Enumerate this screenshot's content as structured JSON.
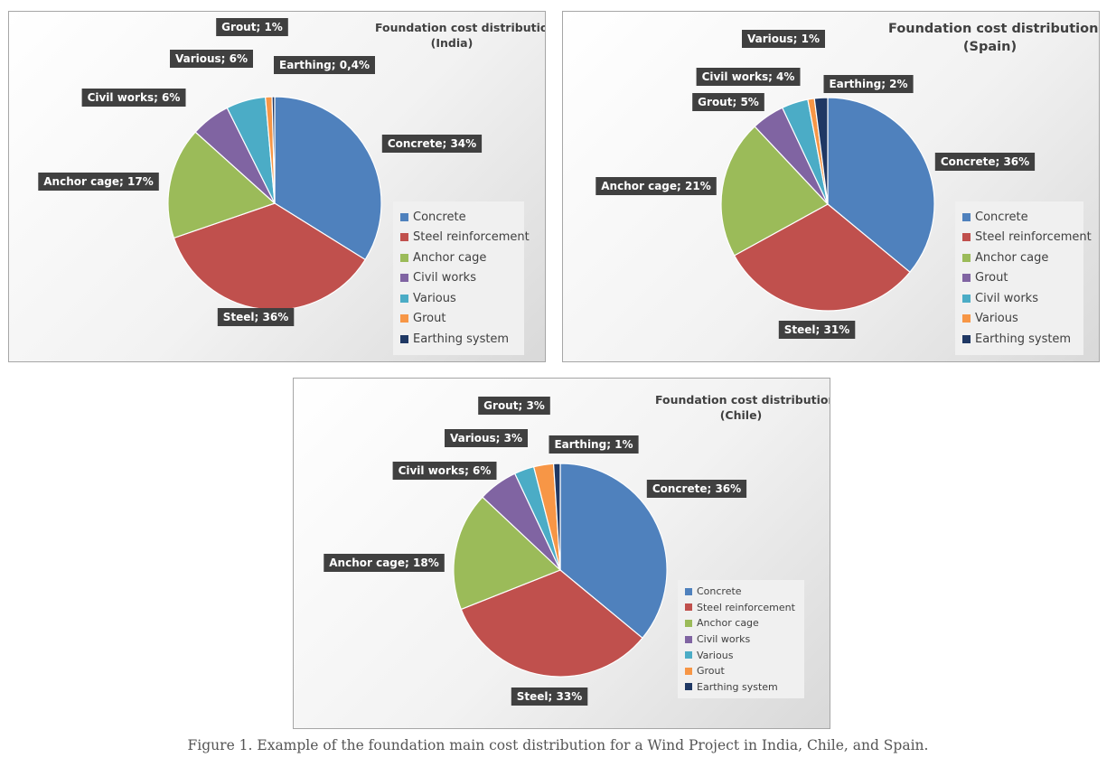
{
  "figure": {
    "caption": "Figure 1. Example of the foundation main cost distribution for a Wind Project in India, Chile, and Spain."
  },
  "chart_data": [
    {
      "type": "pie",
      "title": "Foundation cost distribution",
      "subtitle": "(India)",
      "legend_position": "right",
      "slices": [
        {
          "legend": "Concrete",
          "label": "Concrete; 34%",
          "value": 34,
          "color": "#4f81bd"
        },
        {
          "legend": "Steel reinforcement",
          "label": "Steel; 36%",
          "value": 36,
          "color": "#c0504d"
        },
        {
          "legend": "Anchor cage",
          "label": "Anchor cage;  17%",
          "value": 17,
          "color": "#9bbb59"
        },
        {
          "legend": "Civil works",
          "label": "Civil works; 6%",
          "value": 6,
          "color": "#8064a2"
        },
        {
          "legend": "Various",
          "label": "Various; 6%",
          "value": 6,
          "color": "#4bacc6"
        },
        {
          "legend": "Grout",
          "label": "Grout; 1%",
          "value": 1,
          "color": "#f79646"
        },
        {
          "legend": "Earthing system",
          "label": "Earthing; 0,4%",
          "value": 0.4,
          "color": "#1f3864"
        }
      ]
    },
    {
      "type": "pie",
      "title": "Foundation cost distribution",
      "subtitle": "(Spain)",
      "legend_position": "right",
      "slices": [
        {
          "legend": "Concrete",
          "label": "Concrete; 36%",
          "value": 36,
          "color": "#4f81bd"
        },
        {
          "legend": "Steel reinforcement",
          "label": "Steel; 31%",
          "value": 31,
          "color": "#c0504d"
        },
        {
          "legend": "Anchor cage",
          "label": "Anchor cage;  21%",
          "value": 21,
          "color": "#9bbb59"
        },
        {
          "legend": "Grout",
          "label": "Grout; 5%",
          "value": 5,
          "color": "#8064a2"
        },
        {
          "legend": "Civil works",
          "label": "Civil works; 4%",
          "value": 4,
          "color": "#4bacc6"
        },
        {
          "legend": "Various",
          "label": "Various; 1%",
          "value": 1,
          "color": "#f79646"
        },
        {
          "legend": "Earthing system",
          "label": "Earthing; 2%",
          "value": 2,
          "color": "#1f3864"
        }
      ]
    },
    {
      "type": "pie",
      "title": "Foundation cost distribution",
      "subtitle": "(Chile)",
      "legend_position": "right",
      "slices": [
        {
          "legend": "Concrete",
          "label": "Concrete; 36%",
          "value": 36,
          "color": "#4f81bd"
        },
        {
          "legend": "Steel reinforcement",
          "label": "Steel; 33%",
          "value": 33,
          "color": "#c0504d"
        },
        {
          "legend": "Anchor cage",
          "label": "Anchor cage;  18%",
          "value": 18,
          "color": "#9bbb59"
        },
        {
          "legend": "Civil works",
          "label": "Civil works; 6%",
          "value": 6,
          "color": "#8064a2"
        },
        {
          "legend": "Various",
          "label": "Various; 3%",
          "value": 3,
          "color": "#4bacc6"
        },
        {
          "legend": "Grout",
          "label": "Grout; 3%",
          "value": 3,
          "color": "#f79646"
        },
        {
          "legend": "Earthing system",
          "label": "Earthing; 1%",
          "value": 1,
          "color": "#1f3864"
        }
      ]
    }
  ]
}
